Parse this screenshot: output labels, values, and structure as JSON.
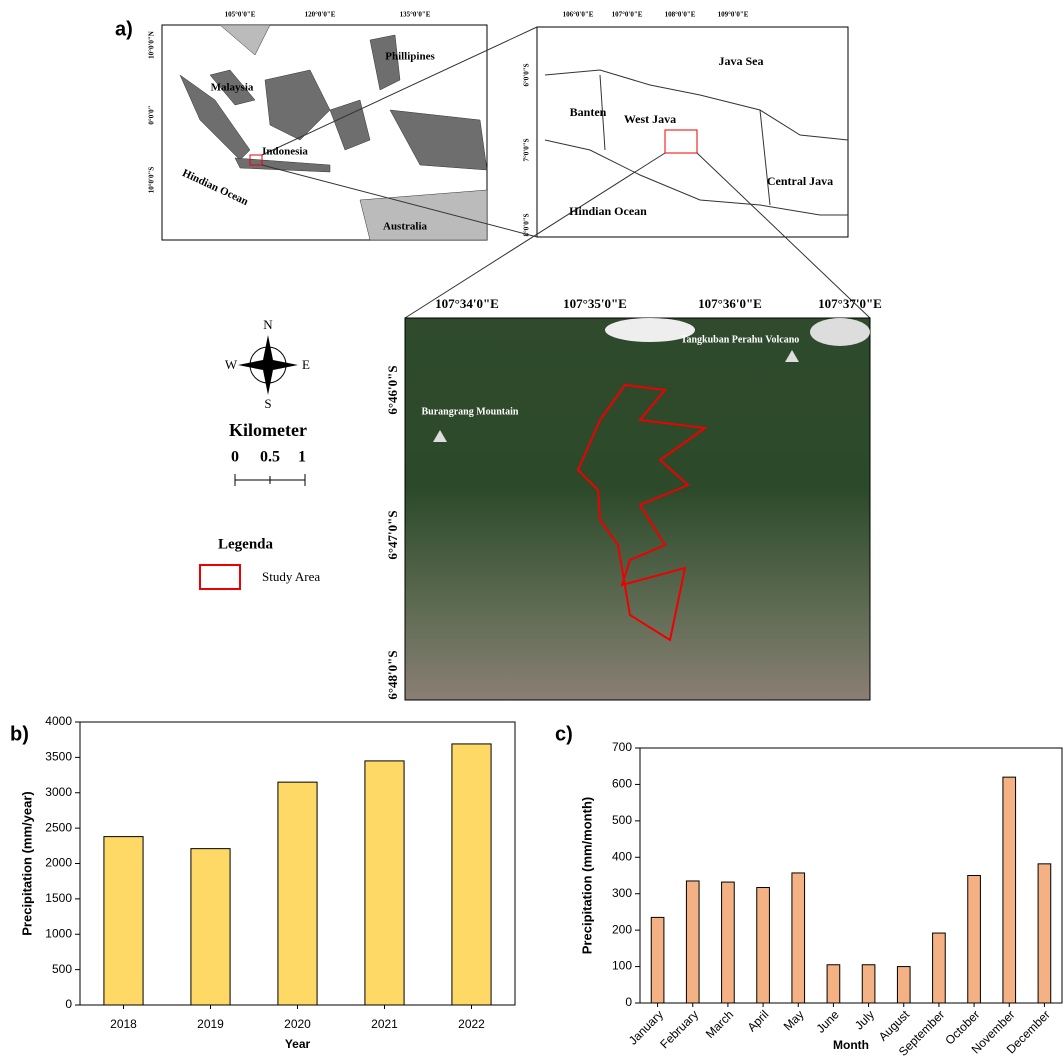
{
  "maps": {
    "panel_label": "a)",
    "inset_region": {
      "lon_ticks": [
        "105°0'0\"E",
        "120°0'0\"E",
        "135°0'0\"E"
      ],
      "lat_ticks": [
        "10°0'0\"N",
        "0°0'0\"",
        "10°0'0\"S"
      ],
      "labels": [
        "Malaysia",
        "Phillipines",
        "Indonesia",
        "Hindian Ocean",
        "Australia"
      ]
    },
    "inset_province": {
      "lon_ticks": [
        "106°0'0\"E",
        "107°0'0\"E",
        "108°0'0\"E",
        "109°0'0\"E"
      ],
      "lat_ticks": [
        "6°0'0\"S",
        "7°0'0\"S",
        "8°0'0\"S"
      ],
      "labels": [
        "Java Sea",
        "Banten",
        "West Java",
        "Central Java",
        "Hindian Ocean"
      ]
    },
    "study_map": {
      "lon_ticks": [
        "107°34'0\"E",
        "107°35'0\"E",
        "107°36'0\"E",
        "107°37'0\"E"
      ],
      "lat_ticks": [
        "6°46'0\"S",
        "6°47'0\"S",
        "6°48'0\"S"
      ],
      "labels": [
        "Tangkuban Perahu Volcano",
        "Burangrang Mountain"
      ]
    },
    "compass": [
      "N",
      "E",
      "S",
      "W"
    ],
    "scale": {
      "title": "Kilometer",
      "ticks": [
        "0",
        "0.5",
        "1"
      ]
    },
    "legend": {
      "title": "Legenda",
      "item": "Study Area"
    }
  },
  "chart_data": [
    {
      "type": "bar",
      "panel_label": "b)",
      "x_label": "Year",
      "y_label": "Precipitation (mm/year)",
      "categories": [
        "2018",
        "2019",
        "2020",
        "2021",
        "2022"
      ],
      "values": [
        2380,
        2210,
        3150,
        3450,
        3690
      ],
      "color": "#ffd966",
      "ylim": [
        0,
        4000
      ],
      "yticks": [
        0,
        500,
        1000,
        1500,
        2000,
        2500,
        3000,
        3500,
        4000
      ]
    },
    {
      "type": "bar",
      "panel_label": "c)",
      "x_label": "Month",
      "y_label": "Precipitation (mm/month)",
      "categories": [
        "January",
        "February",
        "March",
        "April",
        "May",
        "June",
        "July",
        "August",
        "September",
        "October",
        "November",
        "December"
      ],
      "values": [
        235,
        335,
        332,
        317,
        357,
        105,
        105,
        100,
        192,
        350,
        620,
        382
      ],
      "color": "#f4b183",
      "ylim": [
        0,
        700
      ],
      "yticks": [
        0,
        100,
        200,
        300,
        400,
        500,
        600,
        700
      ]
    }
  ]
}
